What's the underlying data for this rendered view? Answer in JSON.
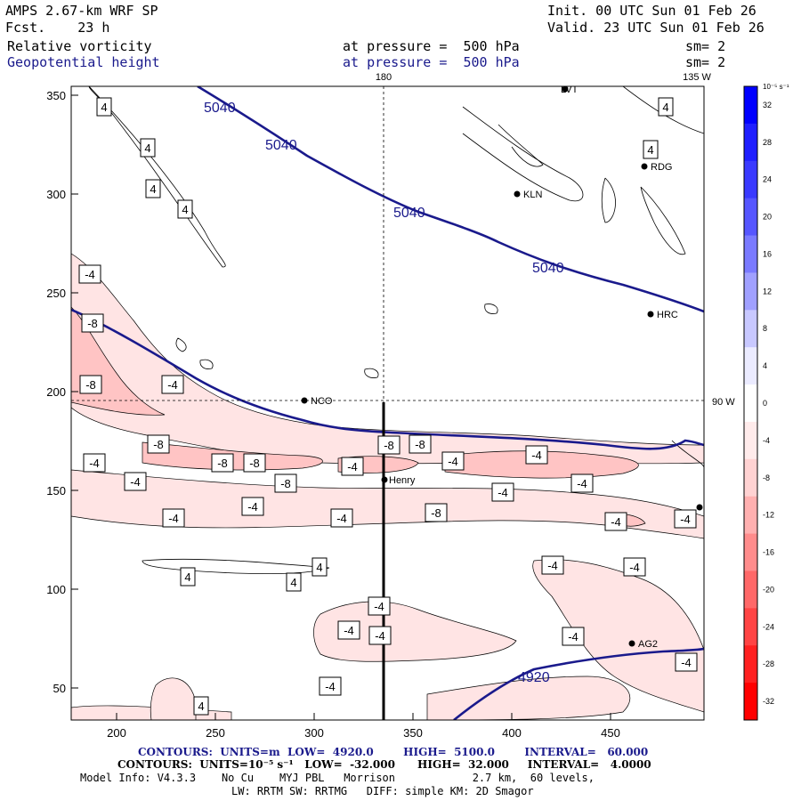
{
  "header": {
    "model": "AMPS 2.67-km WRF SP",
    "init": "Init. 00 UTC Sun 01 Feb 26",
    "fcst": "Fcst.    23 h",
    "valid": "Valid. 23 UTC Sun 01 Feb 26",
    "field1_name": "Relative vorticity",
    "field1_level": "at pressure =  500 hPa",
    "field1_sm": "sm= 2",
    "field2_name": "Geopotential height",
    "field2_level": "at pressure =  500 hPa",
    "field2_sm": "sm= 2"
  },
  "axes": {
    "x_ticks": [
      "200",
      "250",
      "300",
      "350",
      "400",
      "450"
    ],
    "y_ticks": [
      "350",
      "300",
      "250",
      "200",
      "150",
      "100",
      "50"
    ],
    "top_labels": [
      "180",
      "135 W"
    ],
    "right_label": "90 W"
  },
  "colorbar": {
    "units": "10⁻⁵ s⁻¹",
    "levels": [
      "32",
      "28",
      "24",
      "20",
      "16",
      "12",
      "8",
      "4",
      "0",
      "-4",
      "-8",
      "-12",
      "-16",
      "-20",
      "-24",
      "-28",
      "-32"
    ],
    "colors_top_to_bottom": [
      "#0000ff",
      "#1f1fff",
      "#3a3aff",
      "#5656ff",
      "#7a7aff",
      "#a0a0ff",
      "#c8c8ff",
      "#ebebff",
      "#ffffff",
      "#ffebeb",
      "#ffd2d2",
      "#ffb0b0",
      "#ff8c8c",
      "#ff6868",
      "#ff4444",
      "#ff2020",
      "#ff0000"
    ]
  },
  "stations": [
    {
      "name": "LVT"
    },
    {
      "name": "RDG"
    },
    {
      "name": "KLN"
    },
    {
      "name": "HRC"
    },
    {
      "name": "NCO"
    },
    {
      "name": "Henry"
    },
    {
      "name": "AG2"
    }
  ],
  "height_labels": [
    "5040",
    "5040",
    "5040",
    "5040",
    "4920"
  ],
  "vorticity_labels": [
    "4",
    "4",
    "4",
    "4",
    "4",
    "4",
    "4",
    "4",
    "4",
    "4",
    "-4",
    "-8",
    "-8",
    "-4",
    "-8",
    "-8",
    "-8",
    "-4",
    "-4",
    "-8",
    "-4",
    "-8",
    "-8",
    "-4",
    "-4",
    "-4",
    "-4",
    "-8",
    "-4",
    "-4",
    "-4",
    "-4",
    "-4",
    "-4",
    "-4",
    "-4",
    "-4",
    "-4",
    "-4",
    "-4",
    "-4"
  ],
  "footer": {
    "line1": "CONTOURS:  UNITS=m  LOW=  4920.0        HIGH=  5100.0        INTERVAL=   60.000",
    "line2": "CONTOURS:  UNITS=10⁻⁵ s⁻¹   LOW=  -32.000      HIGH=  32.000     INTERVAL=   4.0000",
    "line3": "Model Info: V4.3.3    No Cu    MYJ PBL   Morrison            2.7 km,  60 levels,",
    "line4": "LW: RRTM SW: RRTMG   DIFF: simple KM: 2D Smagor"
  }
}
